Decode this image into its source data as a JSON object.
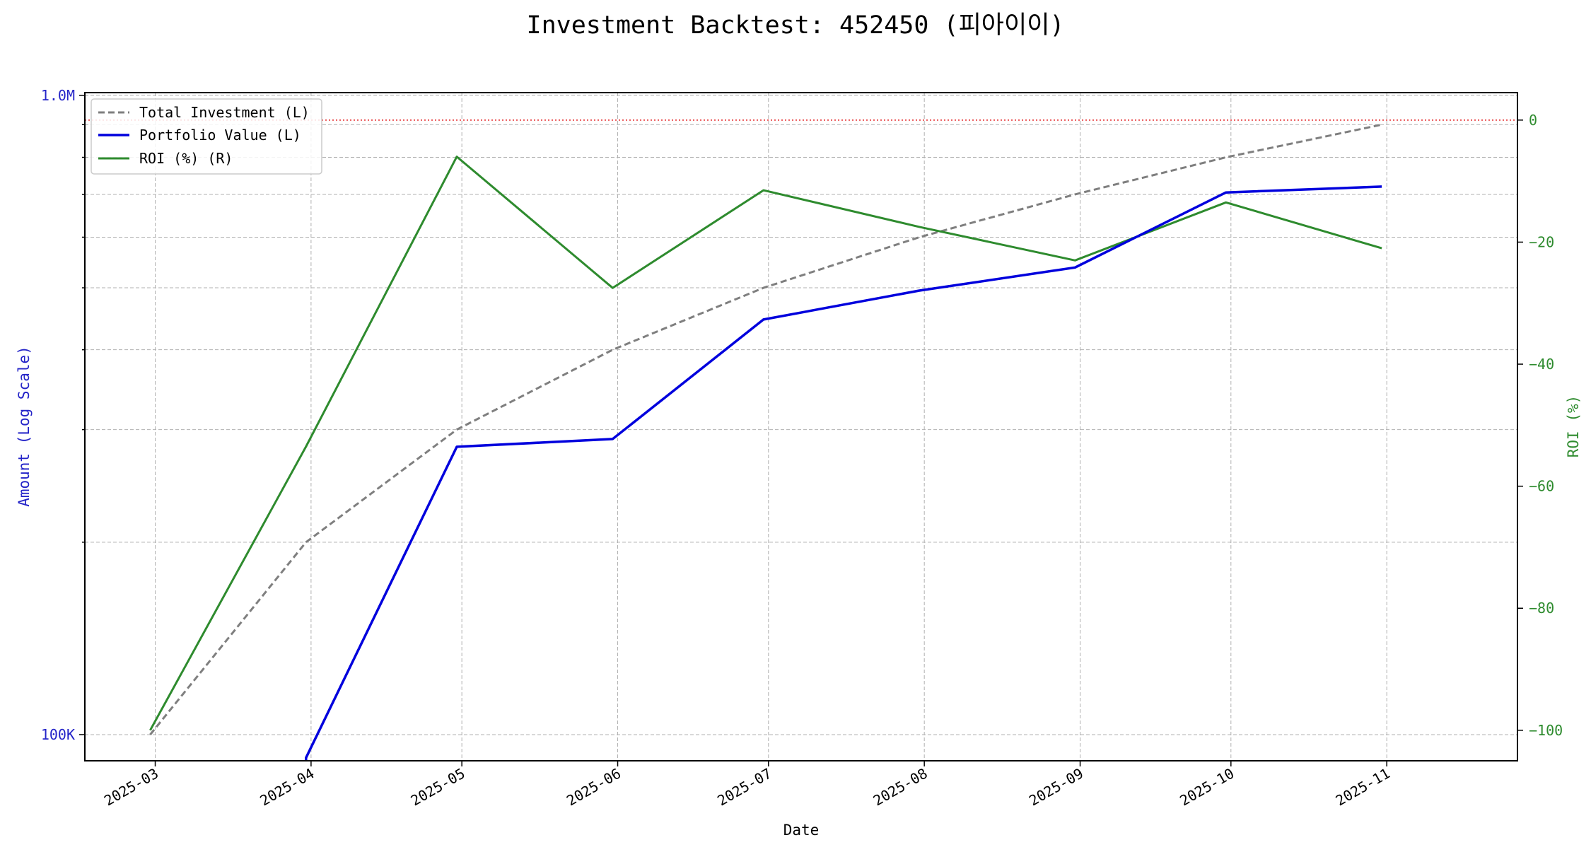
{
  "chart_data": {
    "type": "line",
    "title": "Investment Backtest: 452450 (피아이이)",
    "xlabel": "Date",
    "ylabel_left": "Amount (Log Scale)",
    "ylabel_right": "ROI (%)",
    "left_scale": "log",
    "left_ylim": [
      91000,
      1010000
    ],
    "right_ylim": [
      -105,
      4.5
    ],
    "xlim": [
      "2025-02-15",
      "2025-11-27"
    ],
    "x_ticks": [
      "2025-03-01",
      "2025-04-01",
      "2025-05-01",
      "2025-06-01",
      "2025-07-01",
      "2025-08-01",
      "2025-09-01",
      "2025-10-01",
      "2025-11-01"
    ],
    "x_tick_labels": [
      "2025-03",
      "2025-04",
      "2025-05",
      "2025-06",
      "2025-07",
      "2025-08",
      "2025-09",
      "2025-10",
      "2025-11"
    ],
    "left_ticks": [
      100000,
      1000000
    ],
    "left_tick_labels": [
      "100K",
      "1.0M"
    ],
    "right_ticks": [
      0,
      -20,
      -40,
      -60,
      -80,
      -100
    ],
    "right_tick_labels": [
      "0",
      "−20",
      "−40",
      "−60",
      "−80",
      "−100"
    ],
    "grid": true,
    "legend_position": "top-left",
    "zero_reference_line": {
      "axis": "right",
      "value": 0,
      "color": "#e41a1c",
      "style": "dotted"
    },
    "series": [
      {
        "name": "Total Investment (L)",
        "axis": "left",
        "color": "#7f7f7f",
        "style": "dashed",
        "x": [
          "2025-02-28",
          "2025-03-31",
          "2025-04-30",
          "2025-05-31",
          "2025-06-30",
          "2025-07-31",
          "2025-08-31",
          "2025-09-30",
          "2025-10-31"
        ],
        "values": [
          100000,
          200000,
          300000,
          400000,
          500000,
          600000,
          700000,
          800000,
          900000
        ]
      },
      {
        "name": "Portfolio Value (L)",
        "axis": "left",
        "color": "#0000dd",
        "style": "solid",
        "x": [
          "2025-03-31",
          "2025-03-31",
          "2025-04-30",
          "2025-05-31",
          "2025-06-30",
          "2025-07-31",
          "2025-08-31",
          "2025-09-30",
          "2025-10-31"
        ],
        "values": [
          91000,
          92000,
          282000,
          290000,
          446000,
          495000,
          538000,
          705000,
          720000
        ]
      },
      {
        "name": "ROI (%) (R)",
        "axis": "right",
        "color": "#2e8b2e",
        "style": "solid",
        "x": [
          "2025-02-28",
          "2025-03-31",
          "2025-04-30",
          "2025-05-31",
          "2025-06-30",
          "2025-07-31",
          "2025-08-31",
          "2025-09-30",
          "2025-10-31"
        ],
        "values": [
          -100,
          -53.5,
          -6,
          -27.5,
          -11.5,
          -17.5,
          -23,
          -13.5,
          -21
        ]
      }
    ]
  }
}
